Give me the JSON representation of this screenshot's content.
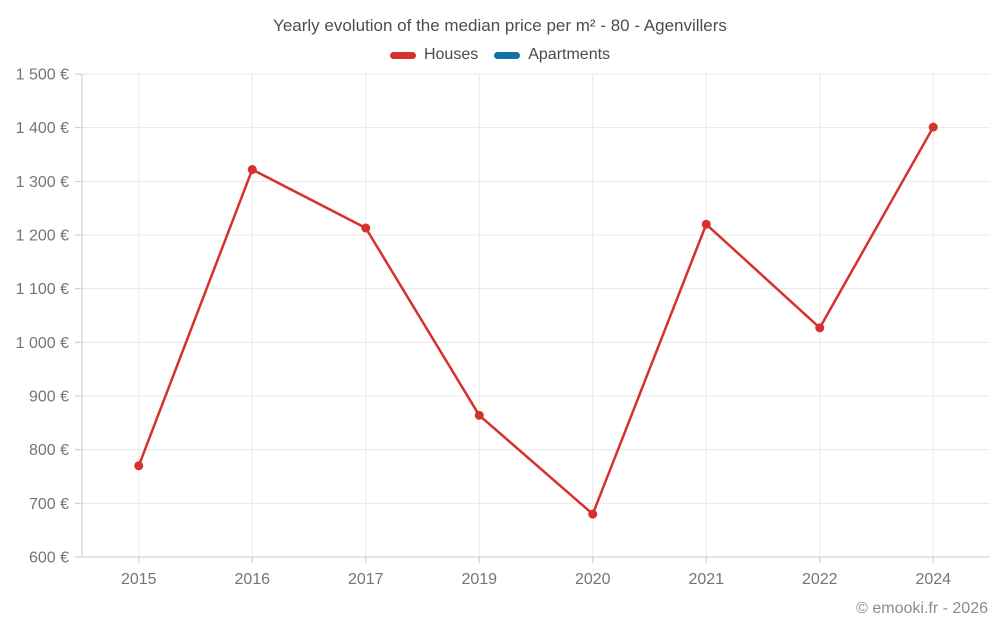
{
  "title": "Yearly evolution of the median price per m² - 80 - Agenvillers",
  "footer": "© emooki.fr - 2026",
  "colors": {
    "houses": "#d5312d",
    "apartments": "#1272a2",
    "grid": "#e8e8e8",
    "axis": "#c9c9c9",
    "tick_text": "#757575",
    "title_text": "#4d4d4d",
    "footer_text": "#8c8c8c"
  },
  "chart_data": {
    "type": "line",
    "title": "Yearly evolution of the median price per m² - 80 - Agenvillers",
    "categories": [
      "2015",
      "2016",
      "2017",
      "2019",
      "2020",
      "2021",
      "2022",
      "2024"
    ],
    "series": [
      {
        "name": "Houses",
        "color": "#d5312d",
        "values": [
          770,
          1322,
          1213,
          864,
          680,
          1220,
          1027,
          1401
        ]
      },
      {
        "name": "Apartments",
        "color": "#1272a2",
        "values": []
      }
    ],
    "ylim": [
      600,
      1500
    ],
    "ytick_step": 100,
    "ytick_values": [
      600,
      700,
      800,
      900,
      1000,
      1100,
      1200,
      1300,
      1400,
      1500
    ],
    "ytick_labels": [
      "600 €",
      "700 €",
      "800 €",
      "900 €",
      "1 000 €",
      "1 100 €",
      "1 200 €",
      "1 300 €",
      "1 400 €",
      "1 500 €"
    ],
    "unit": "€",
    "grid": true,
    "legend_position": "top"
  }
}
